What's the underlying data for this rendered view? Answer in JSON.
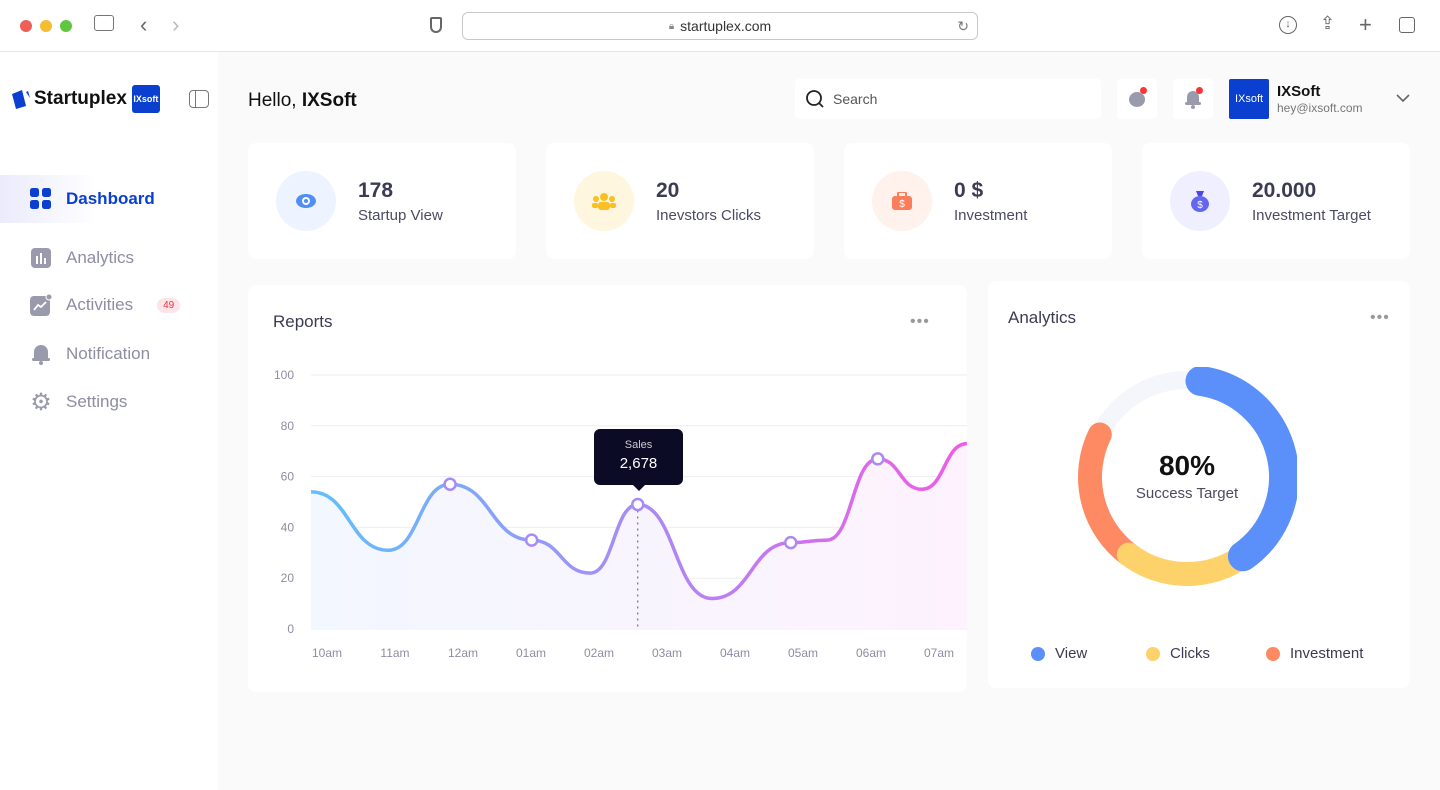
{
  "browser": {
    "url": "startuplex.com"
  },
  "sidebar": {
    "brand": "Startuplex",
    "brand_badge": "IXsoft",
    "items": [
      {
        "label": "Dashboard",
        "icon": "grid-icon",
        "active": true
      },
      {
        "label": "Analytics",
        "icon": "bar-chart-icon"
      },
      {
        "label": "Activities",
        "icon": "activity-icon",
        "count": "49"
      },
      {
        "label": "Notification",
        "icon": "bell-icon"
      },
      {
        "label": "Settings",
        "icon": "gear-icon"
      }
    ]
  },
  "header": {
    "greeting": "Hello,",
    "name": "IXSoft",
    "search_placeholder": "Search",
    "user": {
      "avatar": "IXsoft",
      "name": "IXSoft",
      "email": "hey@ixsoft.com"
    }
  },
  "stats": [
    {
      "value": "178",
      "label": "Startup View",
      "icon": "eye-icon",
      "color": "#4f8ef7",
      "bg": "#edf3ff"
    },
    {
      "value": "20",
      "label": "Inevstors Clicks",
      "icon": "users-icon",
      "color": "#fbbf24",
      "bg": "#fff6e0"
    },
    {
      "value": "0 $",
      "label": "Investment",
      "icon": "briefcase-icon",
      "color": "#fb7d5b",
      "bg": "#fff1ec"
    },
    {
      "value": "20.000",
      "label": "Investment Target",
      "icon": "money-bag-icon",
      "color": "#6366f1",
      "bg": "#efefff"
    }
  ],
  "reports": {
    "title": "Reports",
    "more": "•••",
    "tooltip": {
      "label": "Sales",
      "value": "2,678"
    }
  },
  "chart_data": [
    {
      "type": "area",
      "title": "Reports",
      "categories": [
        "10am",
        "11am",
        "12am",
        "01am",
        "02am",
        "03am",
        "04am",
        "05am",
        "06am",
        "07am"
      ],
      "yticks": [
        0,
        20,
        40,
        60,
        80,
        100
      ],
      "ylim": [
        0,
        100
      ],
      "grid": true,
      "points": [
        [
          -0.24,
          54
        ],
        [
          0.9,
          31
        ],
        [
          1.81,
          57
        ],
        [
          3.01,
          35
        ],
        [
          3.87,
          22
        ],
        [
          4.57,
          49
        ],
        [
          5.66,
          12
        ],
        [
          6.82,
          34
        ],
        [
          7.35,
          35
        ],
        [
          8.1,
          67
        ],
        [
          8.75,
          55
        ],
        [
          9.41,
          73
        ]
      ],
      "markers": [
        2,
        3,
        5,
        7,
        9
      ],
      "highlight_index": 5
    },
    {
      "type": "pie",
      "title": "Analytics",
      "center_value": "80%",
      "center_label": "Success Target",
      "series": [
        {
          "name": "View",
          "value": 38,
          "color": "#5b8ff9"
        },
        {
          "name": "Clicks",
          "value": 20,
          "color": "#fdd26b"
        },
        {
          "name": "Investment",
          "value": 22,
          "color": "#fd8a63"
        }
      ]
    }
  ],
  "analytics": {
    "title": "Analytics",
    "more": "•••"
  }
}
